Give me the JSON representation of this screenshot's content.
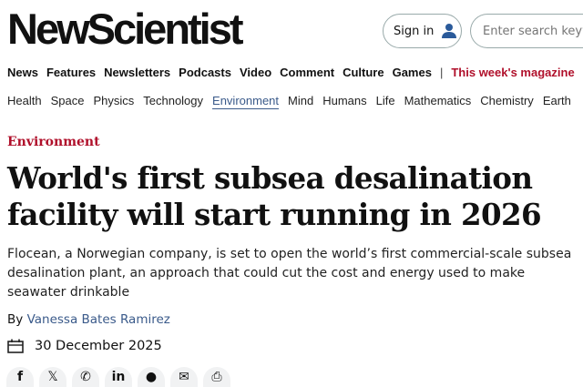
{
  "header": {
    "logo": "NewScientist",
    "sign_in": "Sign in",
    "search_placeholder": "Enter search keywords"
  },
  "nav_primary": [
    "News",
    "Features",
    "Newsletters",
    "Podcasts",
    "Video",
    "Comment",
    "Culture",
    "Games"
  ],
  "nav_separator": "|",
  "nav_magazine": "This week's magazine",
  "nav_topics": [
    "Health",
    "Space",
    "Physics",
    "Technology",
    "Environment",
    "Mind",
    "Humans",
    "Life",
    "Mathematics",
    "Chemistry",
    "Earth"
  ],
  "active_topic": "Environment",
  "article": {
    "category": "Environment",
    "title": "World's first subsea desalination facility will start running in 2026",
    "standfirst": "Flocean, a Norwegian company, is set to open the world’s first commercial-scale subsea desalination plant, an approach that could cut the cost and energy used to make seawater drinkable",
    "by": "By",
    "author": "Vanessa Bates Ramirez",
    "date": "30 December 2025"
  },
  "share_icons": [
    "facebook-icon",
    "x-icon",
    "whatsapp-icon",
    "linkedin-icon",
    "reddit-icon",
    "email-icon",
    "print-icon"
  ],
  "colors": {
    "accent": "#b0102b",
    "link": "#3a5a8a"
  }
}
